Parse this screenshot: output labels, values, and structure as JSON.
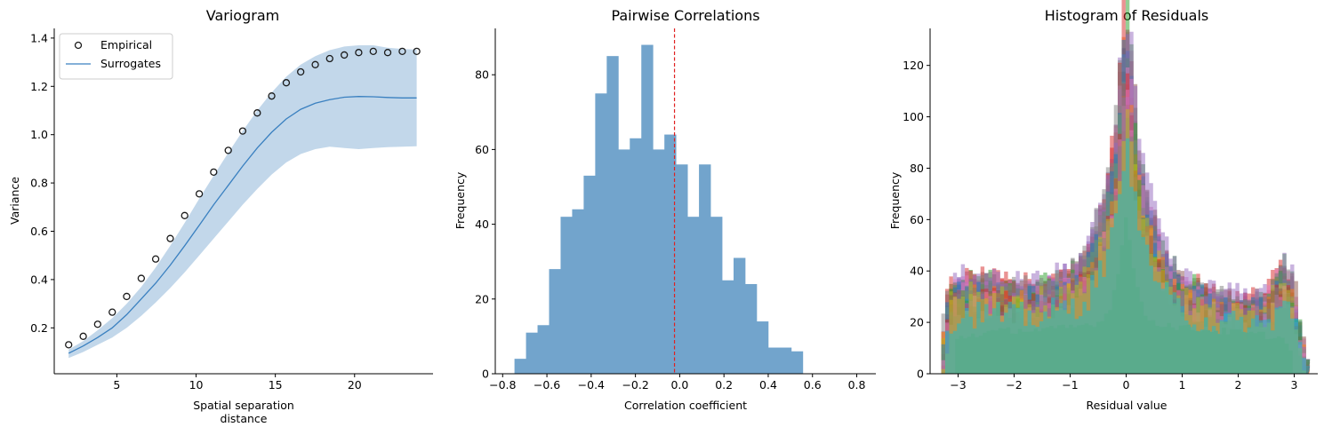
{
  "chart_data": [
    {
      "type": "line",
      "title": "Variogram",
      "xlabel": "Spatial separation distance",
      "ylabel": "Variance",
      "xlim": [
        1.05,
        24.95
      ],
      "ylim": [
        0.01,
        1.44
      ],
      "xticks": [
        5,
        10,
        15,
        20
      ],
      "yticks": [
        0.2,
        0.4,
        0.6,
        0.8,
        1.0,
        1.2,
        1.4
      ],
      "grid": false,
      "legend": "top-left",
      "x": [
        1.96,
        2.88,
        3.79,
        4.71,
        5.62,
        6.54,
        7.45,
        8.37,
        9.28,
        10.2,
        11.11,
        12.03,
        12.94,
        13.86,
        14.77,
        15.69,
        16.6,
        17.52,
        18.43,
        19.35,
        20.26,
        21.18,
        22.09,
        23.01,
        23.92
      ],
      "series": [
        {
          "name": "Empirical",
          "style": "open-circle",
          "color": "#1a1a1a",
          "values": [
            0.13,
            0.165,
            0.215,
            0.265,
            0.33,
            0.405,
            0.485,
            0.57,
            0.665,
            0.755,
            0.845,
            0.935,
            1.015,
            1.09,
            1.16,
            1.215,
            1.26,
            1.29,
            1.315,
            1.33,
            1.34,
            1.345,
            1.34,
            1.345,
            1.345
          ]
        },
        {
          "name": "Surrogates",
          "style": "line",
          "color": "#3a80c0",
          "values": [
            0.095,
            0.125,
            0.16,
            0.2,
            0.255,
            0.32,
            0.385,
            0.46,
            0.54,
            0.625,
            0.71,
            0.79,
            0.87,
            0.945,
            1.01,
            1.065,
            1.105,
            1.13,
            1.145,
            1.155,
            1.158,
            1.157,
            1.154,
            1.152,
            1.152
          ],
          "band_upper": [
            0.11,
            0.145,
            0.19,
            0.24,
            0.3,
            0.37,
            0.45,
            0.54,
            0.635,
            0.735,
            0.83,
            0.925,
            1.015,
            1.1,
            1.175,
            1.24,
            1.29,
            1.325,
            1.35,
            1.365,
            1.37,
            1.37,
            1.36,
            1.355,
            1.352
          ],
          "band_lower": [
            0.075,
            0.1,
            0.13,
            0.16,
            0.2,
            0.25,
            0.305,
            0.365,
            0.43,
            0.5,
            0.57,
            0.64,
            0.71,
            0.775,
            0.835,
            0.885,
            0.92,
            0.94,
            0.95,
            0.945,
            0.94,
            0.945,
            0.948,
            0.95,
            0.952
          ],
          "band_color": "#c2d7ea"
        }
      ]
    },
    {
      "type": "bar",
      "title": "Pairwise Correlations",
      "xlabel": "Correlation coefficient",
      "ylabel": "Frequency",
      "xlim": [
        -0.8333,
        0.8863
      ],
      "ylim": [
        0,
        92.4
      ],
      "xticks": [
        -0.8,
        -0.6,
        -0.4,
        -0.2,
        0.0,
        0.2,
        0.4,
        0.6,
        0.8
      ],
      "xtick_labels": [
        "−0.8",
        "−0.6",
        "−0.4",
        "−0.2",
        "0.0",
        "0.2",
        "0.4",
        "0.6",
        "0.8"
      ],
      "yticks": [
        0,
        20,
        40,
        60,
        80
      ],
      "bar_color": "#72a4cc",
      "bin_start": -0.7465,
      "bin_width": 0.0521,
      "values": [
        4,
        11,
        13,
        28,
        42,
        44,
        53,
        75,
        85,
        60,
        63,
        88,
        60,
        64,
        56,
        42,
        56,
        42,
        25,
        31,
        24,
        14,
        7,
        7,
        6
      ],
      "mean_line": {
        "x": -0.0235,
        "color": "#e02020",
        "style": "dashed"
      }
    },
    {
      "type": "bar",
      "title": "Histogram of Residuals",
      "xlabel": "Residual value",
      "ylabel": "Frequency",
      "xlim": [
        -3.5,
        3.42
      ],
      "ylim": [
        0,
        134.4
      ],
      "xticks": [
        -3,
        -2,
        -1,
        0,
        1,
        2,
        3
      ],
      "xtick_labels": [
        "−3",
        "−2",
        "−1",
        "0",
        "1",
        "2",
        "3"
      ],
      "yticks": [
        0,
        20,
        40,
        60,
        80,
        100,
        120
      ],
      "overlay_palette": [
        "#1f77b4",
        "#ff7f0e",
        "#2ca02c",
        "#d62728",
        "#9467bd",
        "#8c564b",
        "#e377c2",
        "#7f7f7f",
        "#bcbd22",
        "#17becf"
      ],
      "profile": {
        "x": [
          -3.25,
          -3.15,
          -3.05,
          -2.5,
          -2.0,
          -1.5,
          -1.0,
          -0.7,
          -0.5,
          -0.3,
          -0.15,
          0.0,
          0.15,
          0.3,
          0.5,
          0.7,
          1.0,
          1.5,
          2.0,
          2.5,
          2.8,
          2.95,
          3.1,
          3.2
        ],
        "y": [
          8,
          26,
          30,
          30,
          28,
          29,
          33,
          38,
          50,
          63,
          82,
          110,
          82,
          63,
          50,
          38,
          30,
          26,
          24,
          25,
          35,
          30,
          12,
          0
        ]
      },
      "final_layer": {
        "color": "#5aab8c",
        "x": [
          -3.05,
          -2.5,
          -2.0,
          -1.5,
          -1.0,
          -0.5,
          -0.3,
          -0.1,
          0.0,
          0.1,
          0.3,
          0.5,
          1.0,
          1.5,
          2.0,
          2.5,
          2.9,
          3.0
        ],
        "y": [
          14,
          16,
          17,
          17,
          18,
          20,
          24,
          45,
          63,
          45,
          24,
          20,
          18,
          17,
          16,
          15,
          13,
          0
        ]
      }
    }
  ]
}
